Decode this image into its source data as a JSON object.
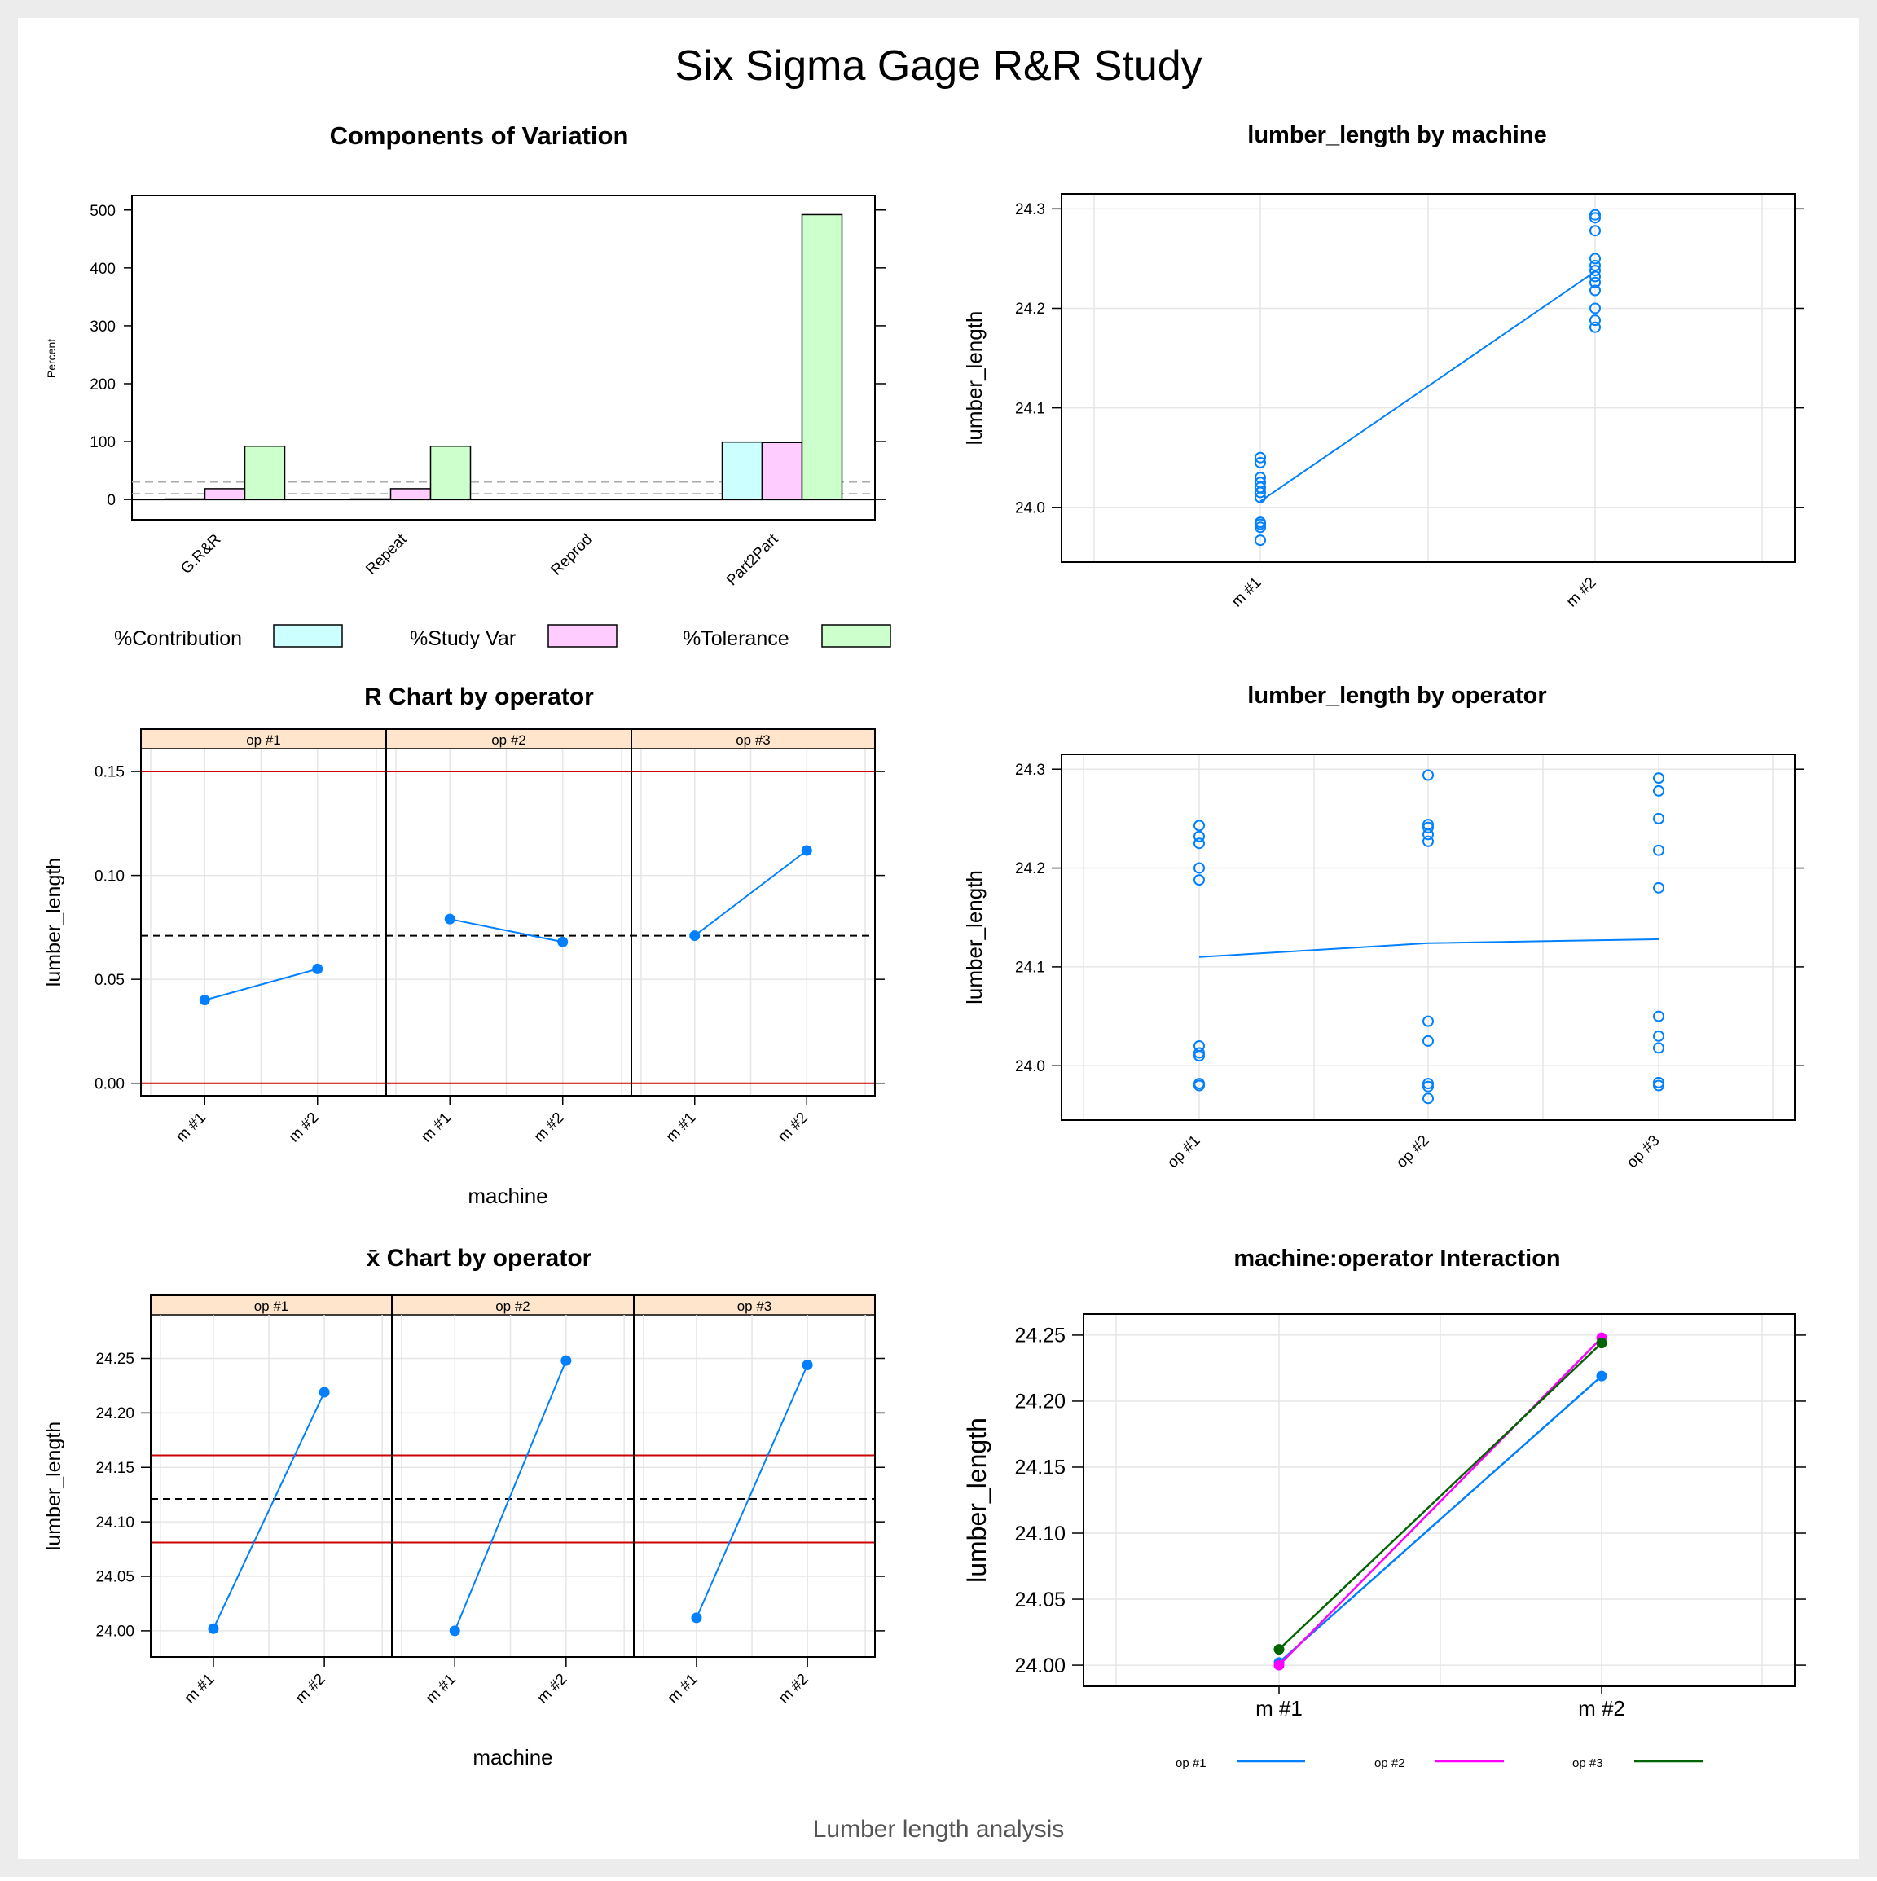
{
  "page": {
    "title": "Six Sigma Gage R&R Study",
    "subtitle": "Lumber length analysis"
  },
  "colors": {
    "blue": "#0080ff",
    "magenta": "#ff00ff",
    "green": "#006400",
    "red": "#cc0000",
    "strip": "#ffe5cc",
    "contribution": "#ccffff",
    "studyvar": "#ffccff",
    "tolerance": "#ccffcc",
    "grid": "#e6e6e6"
  },
  "chart_data": [
    {
      "id": "components",
      "type": "bar",
      "title": "Components of Variation",
      "ylabel": "Percent",
      "categories": [
        "G.R&R",
        "Repeat",
        "Reprod",
        "Part2Part"
      ],
      "series": [
        {
          "name": "%Contribution",
          "values": [
            0.9,
            0.9,
            0.0,
            99.1
          ]
        },
        {
          "name": "%Study Var",
          "values": [
            18.6,
            18.6,
            0.0,
            98.3
          ]
        },
        {
          "name": "%Tolerance",
          "values": [
            92.0,
            92.0,
            0.0,
            492.0
          ]
        }
      ],
      "reference_lines": [
        10,
        30
      ],
      "yticks": [
        0,
        100,
        200,
        300,
        400,
        500
      ],
      "ylim": [
        -35,
        525
      ],
      "legend_position": "bottom"
    },
    {
      "id": "by_machine",
      "type": "scatter",
      "title": "lumber_length by machine",
      "ylabel": "lumber_length",
      "categories": [
        "m #1",
        "m #2"
      ],
      "points": [
        [
          24.05,
          24.045,
          24.03,
          24.025,
          24.02,
          24.015,
          24.01,
          23.985,
          23.983,
          23.98,
          23.967
        ],
        [
          24.294,
          24.291,
          24.278,
          24.25,
          24.243,
          24.238,
          24.232,
          24.226,
          24.218,
          24.2,
          24.188,
          24.181
        ]
      ],
      "means": [
        24.006,
        24.237
      ],
      "yticks": [
        "24.0",
        "24.1",
        "24.2",
        "24.3"
      ],
      "tick_values": [
        24.0,
        24.1,
        24.2,
        24.3
      ],
      "ylim": [
        23.945,
        24.315
      ]
    },
    {
      "id": "r_chart",
      "type": "line",
      "title": "R Chart by operator",
      "xlabel": "machine",
      "ylabel": "lumber_length",
      "panels": [
        "op #1",
        "op #2",
        "op #3"
      ],
      "categories": [
        "m #1",
        "m #2"
      ],
      "values": [
        [
          0.04,
          0.055
        ],
        [
          0.079,
          0.068
        ],
        [
          0.071,
          0.112
        ]
      ],
      "center": 0.071,
      "lcl": 0.0,
      "ucl": 0.15,
      "yticks": [
        "0.00",
        "0.05",
        "0.10",
        "0.15"
      ],
      "tick_values": [
        0.0,
        0.05,
        0.1,
        0.15
      ],
      "ylim": [
        -0.006,
        0.161
      ]
    },
    {
      "id": "by_operator",
      "type": "scatter",
      "title": "lumber_length by operator",
      "ylabel": "lumber_length",
      "categories": [
        "op #1",
        "op #2",
        "op #3"
      ],
      "points": [
        [
          24.243,
          24.232,
          24.225,
          24.2,
          24.188,
          24.02,
          24.013,
          24.01,
          23.982,
          23.98
        ],
        [
          24.294,
          24.244,
          24.241,
          24.234,
          24.227,
          24.045,
          24.025,
          23.982,
          23.979,
          23.967
        ],
        [
          24.291,
          24.278,
          24.25,
          24.218,
          24.18,
          24.05,
          24.03,
          24.018,
          23.983,
          23.98
        ]
      ],
      "means": [
        24.11,
        24.124,
        24.128
      ],
      "yticks": [
        "24.0",
        "24.1",
        "24.2",
        "24.3"
      ],
      "tick_values": [
        24.0,
        24.1,
        24.2,
        24.3
      ],
      "ylim": [
        23.945,
        24.315
      ]
    },
    {
      "id": "xbar_chart",
      "type": "line",
      "title": "x̄ Chart by operator",
      "xlabel": "machine",
      "ylabel": "lumber_length",
      "panels": [
        "op #1",
        "op #2",
        "op #3"
      ],
      "categories": [
        "m #1",
        "m #2"
      ],
      "values": [
        [
          24.002,
          24.219
        ],
        [
          24.0,
          24.248
        ],
        [
          24.012,
          24.244
        ]
      ],
      "center": 24.121,
      "lcl": 24.081,
      "ucl": 24.161,
      "yticks": [
        "24.00",
        "24.05",
        "24.10",
        "24.15",
        "24.20",
        "24.25"
      ],
      "tick_values": [
        24.0,
        24.05,
        24.1,
        24.15,
        24.2,
        24.25
      ],
      "ylim": [
        23.976,
        24.29
      ]
    },
    {
      "id": "interaction",
      "type": "line",
      "title": "machine:operator Interaction",
      "ylabel": "lumber_length",
      "categories": [
        "m #1",
        "m #2"
      ],
      "series": [
        {
          "name": "op #1",
          "values": [
            24.002,
            24.219
          ]
        },
        {
          "name": "op #2",
          "values": [
            24.0,
            24.248
          ]
        },
        {
          "name": "op #3",
          "values": [
            24.012,
            24.244
          ]
        }
      ],
      "yticks": [
        "24.00",
        "24.05",
        "24.10",
        "24.15",
        "24.20",
        "24.25"
      ],
      "tick_values": [
        24.0,
        24.05,
        24.1,
        24.15,
        24.2,
        24.25
      ],
      "ylim": [
        23.984,
        24.266
      ],
      "legend_position": "bottom"
    }
  ]
}
